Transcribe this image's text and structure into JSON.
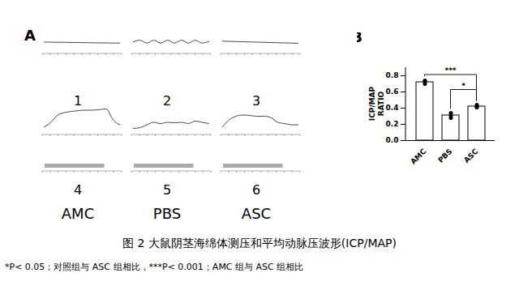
{
  "panel_a": {
    "label": "A",
    "columns": [
      {
        "trace_number": "1",
        "stim_number": "4",
        "group": "AMC",
        "map": [
          0.5,
          0.5,
          0.49,
          0.49,
          0.48,
          0.48,
          0.47,
          0.47,
          0.46,
          0.46,
          0.45,
          0.45
        ],
        "icp": [
          0.1,
          0.3,
          0.6,
          0.7,
          0.75,
          0.78,
          0.8,
          0.8,
          0.82,
          0.85,
          0.4,
          0.2
        ]
      },
      {
        "trace_number": "2",
        "stim_number": "5",
        "group": "PBS",
        "map": [
          0.5,
          0.6,
          0.45,
          0.6,
          0.45,
          0.6,
          0.45,
          0.6,
          0.45,
          0.6,
          0.45,
          0.55
        ],
        "icp": [
          0.05,
          0.08,
          0.2,
          0.3,
          0.25,
          0.3,
          0.28,
          0.3,
          0.25,
          0.35,
          0.3,
          0.25
        ]
      },
      {
        "trace_number": "3",
        "stim_number": "6",
        "group": "ASC",
        "map": [
          0.55,
          0.54,
          0.53,
          0.52,
          0.51,
          0.5,
          0.49,
          0.48,
          0.47,
          0.46,
          0.45,
          0.44
        ],
        "icp": [
          0.1,
          0.4,
          0.55,
          0.6,
          0.58,
          0.55,
          0.55,
          0.5,
          0.3,
          0.25,
          0.2,
          0.2
        ]
      }
    ]
  },
  "chart_data": {
    "type": "bar",
    "label": "B",
    "y_label": "ICP/MAP\nRATIO",
    "categories": [
      "AMC",
      "PBS",
      "ASC"
    ],
    "values": [
      0.72,
      0.31,
      0.42
    ],
    "errors": [
      0.03,
      0.04,
      0.025
    ],
    "points": [
      [
        0.7,
        0.74,
        0.73
      ],
      [
        0.28,
        0.34,
        0.31
      ],
      [
        0.41,
        0.44,
        0.42
      ]
    ],
    "color": "#ffffff",
    "marker": "circle",
    "ylim": [
      0,
      0.9
    ],
    "yticks": [
      {
        "value": 0,
        "label": "0.0"
      },
      {
        "value": 0.2,
        "label": "0.2"
      },
      {
        "value": 0.4,
        "label": "0.4"
      },
      {
        "value": 0.6,
        "label": "0.6"
      },
      {
        "value": 0.8,
        "label": "0.8"
      }
    ],
    "comparisons": [
      {
        "from": "AMC",
        "to": "ASC",
        "label": "***"
      },
      {
        "from": "PBS",
        "to": "ASC",
        "label": "*"
      }
    ]
  },
  "caption": "图 2 大鼠阴茎海绵体测压和平均动脉压波形(ICP/MAP)",
  "note": "*P< 0.05；对照组与 ASC 组相比，***P< 0.001；AMC 组与 ASC 组相比"
}
